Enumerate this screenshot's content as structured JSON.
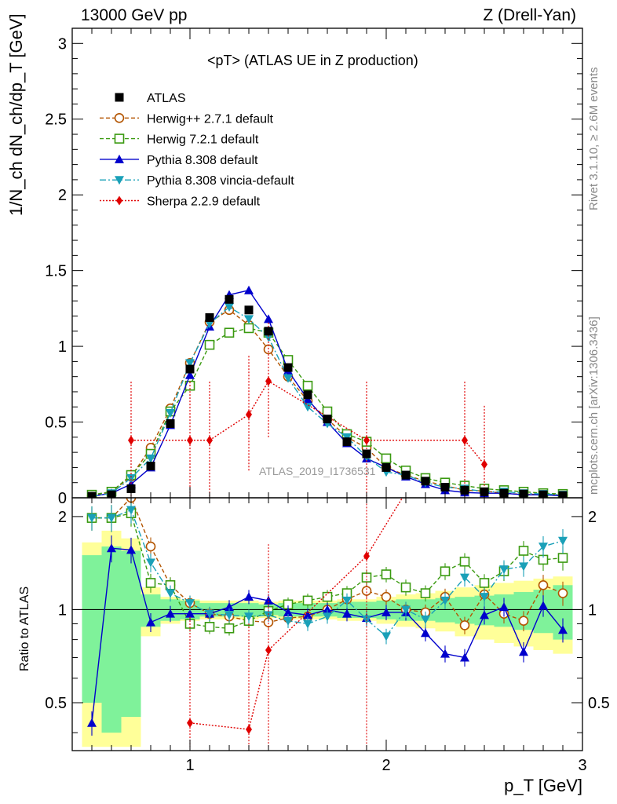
{
  "header": {
    "left": "13000 GeV pp",
    "right": "Z (Drell-Yan)",
    "plot_title": "<pT> (ATLAS UE in Z production)",
    "watermark": "ATLAS_2019_I1736531"
  },
  "side_labels": {
    "rivet": "Rivet 3.1.10, ≥ 2.6M events",
    "mcplots": "mcplots.cern.ch [arXiv:1306.3436]"
  },
  "axes": {
    "ylabel_main": "1/N_ch dN_ch/dp_T [GeV]",
    "ylabel_ratio": "Ratio to ATLAS",
    "xlabel": "p_T [GeV]"
  },
  "colors": {
    "data": "#000000",
    "herwigpp": "#b35400",
    "herwig7": "#3a9a10",
    "pythia": "#0000cc",
    "vincia": "#1aa0b8",
    "sherpa": "#e00000",
    "band_inner": "#7ff29a",
    "band_outer": "#ffff99"
  },
  "chart_data": {
    "type": "line",
    "title": "<pT> (ATLAS UE in Z production)",
    "xlabel": "pT [GeV]",
    "ylabel": "1/Nch dNch/dpT [GeV]",
    "xlim": [
      0.4,
      3.0
    ],
    "ylim": [
      0,
      3.1
    ],
    "ratio_ylim": [
      0.35,
      2.3
    ],
    "x_ticks": [
      1,
      2,
      3
    ],
    "y_ticks": [
      0,
      0.5,
      1,
      1.5,
      2,
      2.5,
      3
    ],
    "ratio_ticks": [
      0.5,
      1,
      2
    ],
    "x": [
      0.5,
      0.6,
      0.7,
      0.8,
      0.9,
      1.0,
      1.1,
      1.2,
      1.3,
      1.4,
      1.5,
      1.6,
      1.7,
      1.8,
      1.9,
      2.0,
      2.1,
      2.2,
      2.3,
      2.4,
      2.5,
      2.6,
      2.7,
      2.8,
      2.9
    ],
    "data": {
      "name": "ATLAS",
      "values": [
        0.01,
        0.02,
        0.06,
        0.21,
        0.49,
        0.85,
        1.19,
        1.31,
        1.24,
        1.1,
        0.86,
        0.68,
        0.52,
        0.37,
        0.29,
        0.2,
        0.15,
        0.11,
        0.07,
        0.05,
        0.04,
        0.03,
        0.025,
        0.02,
        0.015
      ],
      "band_inner": [
        0.5,
        0.6,
        0.55,
        0.12,
        0.08,
        0.07,
        0.05,
        0.05,
        0.05,
        0.04,
        0.05,
        0.05,
        0.05,
        0.06,
        0.06,
        0.07,
        0.08,
        0.08,
        0.09,
        0.1,
        0.11,
        0.12,
        0.14,
        0.16,
        0.2
      ],
      "band_outer": [
        0.65,
        0.8,
        0.7,
        0.18,
        0.1,
        0.08,
        0.07,
        0.07,
        0.07,
        0.06,
        0.07,
        0.07,
        0.07,
        0.08,
        0.08,
        0.1,
        0.12,
        0.13,
        0.15,
        0.18,
        0.2,
        0.22,
        0.24,
        0.26,
        0.28
      ]
    },
    "series": [
      {
        "name": "Herwig++ 2.7.1 default",
        "key": "herwigpp",
        "marker": "circle",
        "dash": "5,3",
        "values": [
          0.01,
          0.04,
          0.14,
          0.33,
          0.59,
          0.89,
          1.16,
          1.24,
          1.14,
          0.98,
          0.8,
          0.64,
          0.52,
          0.4,
          0.33,
          0.2,
          0.15,
          0.11,
          0.08,
          0.05,
          0.045,
          0.03,
          0.022,
          0.024,
          0.017
        ],
        "ratio": [
          1.98,
          1.98,
          2.3,
          1.6,
          1.2,
          1.05,
          0.97,
          0.95,
          0.92,
          0.91,
          0.94,
          0.95,
          1.0,
          1.08,
          1.15,
          1.1,
          1.0,
          0.98,
          1.1,
          0.89,
          1.12,
          0.97,
          0.92,
          1.2,
          1.13
        ]
      },
      {
        "name": "Herwig 7.2.1 default",
        "key": "herwig7",
        "marker": "square",
        "dash": "5,3",
        "values": [
          0.02,
          0.04,
          0.15,
          0.29,
          0.57,
          0.74,
          1.01,
          1.09,
          1.12,
          1.09,
          0.91,
          0.74,
          0.57,
          0.42,
          0.37,
          0.26,
          0.18,
          0.13,
          0.1,
          0.08,
          0.06,
          0.05,
          0.04,
          0.03,
          0.025
        ],
        "ratio": [
          1.98,
          1.98,
          2.05,
          1.22,
          1.2,
          0.9,
          0.88,
          0.87,
          0.92,
          0.99,
          1.04,
          1.07,
          1.1,
          1.13,
          1.27,
          1.3,
          1.18,
          1.13,
          1.33,
          1.43,
          1.22,
          1.33,
          1.55,
          1.45,
          1.47
        ]
      },
      {
        "name": "Pythia 8.308 default",
        "key": "pythia",
        "marker": "triangle-up",
        "dash": "",
        "values": [
          0.01,
          0.03,
          0.09,
          0.2,
          0.48,
          0.81,
          1.13,
          1.34,
          1.37,
          1.18,
          0.84,
          0.65,
          0.5,
          0.36,
          0.26,
          0.2,
          0.14,
          0.09,
          0.05,
          0.035,
          0.03,
          0.03,
          0.02,
          0.02,
          0.013
        ],
        "ratio": [
          0.43,
          1.58,
          1.56,
          0.91,
          0.97,
          0.97,
          0.97,
          1.02,
          1.1,
          1.07,
          0.98,
          0.96,
          1.0,
          0.97,
          0.94,
          0.98,
          0.98,
          0.84,
          0.72,
          0.7,
          0.96,
          1.02,
          0.73,
          1.03,
          0.86
        ]
      },
      {
        "name": "Pythia 8.308 vincia-default",
        "key": "vincia",
        "marker": "triangle-down",
        "dash": "8,3,2,3",
        "values": [
          0.01,
          0.03,
          0.13,
          0.26,
          0.56,
          0.89,
          1.15,
          1.26,
          1.18,
          1.06,
          0.79,
          0.6,
          0.49,
          0.4,
          0.27,
          0.17,
          0.15,
          0.1,
          0.07,
          0.06,
          0.04,
          0.04,
          0.03,
          0.025,
          0.02
        ],
        "ratio": [
          1.98,
          1.98,
          2.1,
          1.42,
          1.13,
          1.05,
          0.97,
          0.96,
          0.95,
          0.96,
          0.92,
          0.9,
          0.95,
          1.07,
          0.93,
          0.82,
          1.0,
          0.93,
          1.07,
          1.27,
          1.1,
          1.35,
          1.38,
          1.6,
          1.67
        ]
      },
      {
        "name": "Sherpa 2.2.9 default",
        "key": "sherpa",
        "marker": "diamond",
        "dash": "2,2",
        "x": [
          0.7,
          1.0,
          1.1,
          1.3,
          1.4,
          1.9,
          2.4,
          2.5
        ],
        "values": [
          0.38,
          0.38,
          0.38,
          0.55,
          0.77,
          0.38,
          0.38,
          0.22
        ],
        "ratio_x": [
          1.0,
          1.3,
          1.4,
          1.9
        ],
        "ratio": [
          0.43,
          0.41,
          0.74,
          1.49
        ]
      }
    ]
  }
}
